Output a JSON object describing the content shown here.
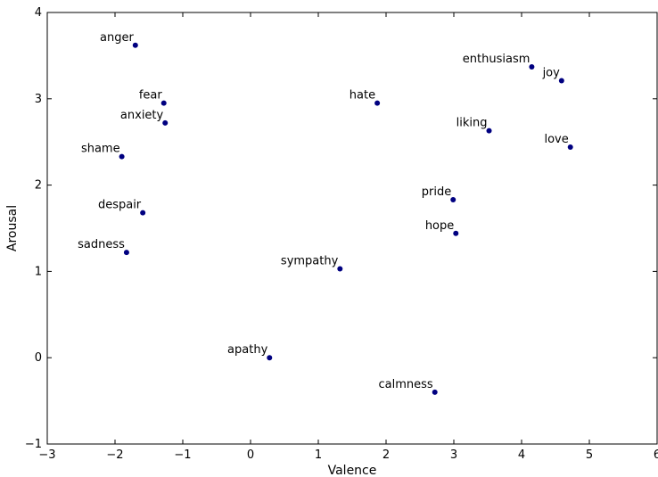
{
  "chart_data": {
    "type": "scatter",
    "title": "",
    "xlabel": "Valence",
    "ylabel": "Arousal",
    "xlim": [
      -3,
      6
    ],
    "ylim": [
      -1,
      4
    ],
    "x_ticks": [
      "−3",
      "−2",
      "−1",
      "0",
      "1",
      "2",
      "3",
      "4",
      "5",
      "6"
    ],
    "y_ticks": [
      "−1",
      "0",
      "1",
      "2",
      "3",
      "4"
    ],
    "grid": false,
    "marker_color": "#000080",
    "points": [
      {
        "label": "anger",
        "x": -1.7,
        "y": 3.62
      },
      {
        "label": "fear",
        "x": -1.28,
        "y": 2.95
      },
      {
        "label": "anxiety",
        "x": -1.26,
        "y": 2.72
      },
      {
        "label": "shame",
        "x": -1.9,
        "y": 2.33
      },
      {
        "label": "despair",
        "x": -1.59,
        "y": 1.68
      },
      {
        "label": "sadness",
        "x": -1.83,
        "y": 1.22
      },
      {
        "label": "hate",
        "x": 1.87,
        "y": 2.95
      },
      {
        "label": "enthusiasm",
        "x": 4.15,
        "y": 3.37
      },
      {
        "label": "joy",
        "x": 4.59,
        "y": 3.21
      },
      {
        "label": "liking",
        "x": 3.52,
        "y": 2.63
      },
      {
        "label": "love",
        "x": 4.72,
        "y": 2.44
      },
      {
        "label": "pride",
        "x": 2.99,
        "y": 1.83
      },
      {
        "label": "hope",
        "x": 3.03,
        "y": 1.44
      },
      {
        "label": "sympathy",
        "x": 1.32,
        "y": 1.03
      },
      {
        "label": "apathy",
        "x": 0.28,
        "y": 0.0
      },
      {
        "label": "calmness",
        "x": 2.72,
        "y": -0.4
      }
    ]
  }
}
